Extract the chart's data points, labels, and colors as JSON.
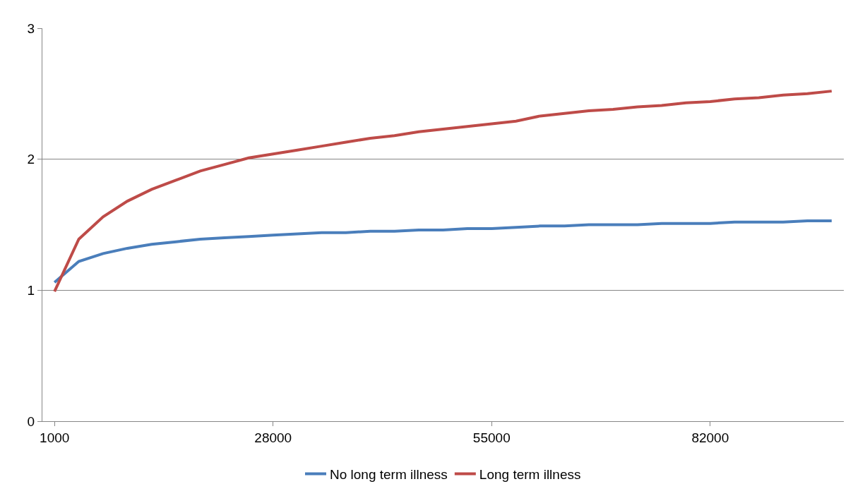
{
  "chart_data": {
    "type": "line",
    "x": [
      1000,
      4000,
      7000,
      10000,
      13000,
      16000,
      19000,
      22000,
      25000,
      28000,
      31000,
      34000,
      37000,
      40000,
      43000,
      46000,
      49000,
      52000,
      55000,
      58000,
      61000,
      64000,
      67000,
      70000,
      73000,
      76000,
      79000,
      82000,
      85000,
      88000,
      91000,
      94000,
      97000
    ],
    "series": [
      {
        "name": "No long term illness",
        "color": "#4a7ebb",
        "values": [
          1.06,
          1.22,
          1.28,
          1.32,
          1.35,
          1.37,
          1.39,
          1.4,
          1.41,
          1.42,
          1.43,
          1.44,
          1.44,
          1.45,
          1.45,
          1.46,
          1.46,
          1.47,
          1.47,
          1.48,
          1.49,
          1.49,
          1.5,
          1.5,
          1.5,
          1.51,
          1.51,
          1.51,
          1.52,
          1.52,
          1.52,
          1.53,
          1.53
        ]
      },
      {
        "name": "Long term illness",
        "color": "#be4b48",
        "values": [
          0.99,
          1.39,
          1.56,
          1.68,
          1.77,
          1.84,
          1.91,
          1.96,
          2.01,
          2.04,
          2.07,
          2.1,
          2.13,
          2.16,
          2.18,
          2.21,
          2.23,
          2.25,
          2.27,
          2.29,
          2.33,
          2.35,
          2.37,
          2.38,
          2.4,
          2.41,
          2.43,
          2.44,
          2.46,
          2.47,
          2.49,
          2.5,
          2.52
        ]
      }
    ],
    "xlim": [
      -500,
      98500
    ],
    "xticks": [
      1000,
      28000,
      55000,
      82000
    ],
    "ylim": [
      0,
      3
    ],
    "yticks": [
      0,
      1,
      2,
      3
    ],
    "grid": "y",
    "legend": "bottom",
    "marker": "none",
    "line_style": "solid"
  }
}
